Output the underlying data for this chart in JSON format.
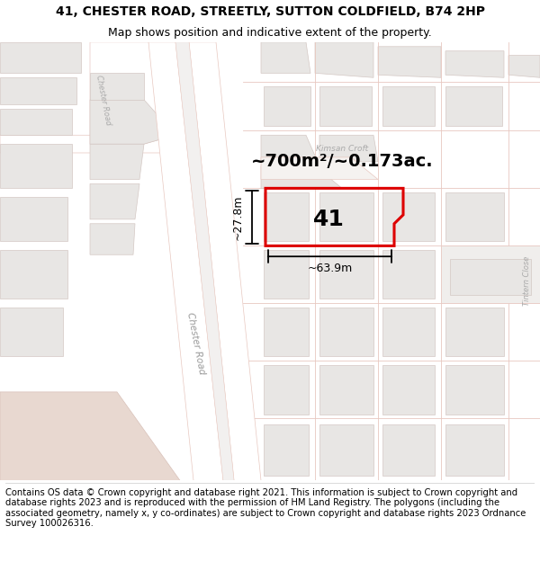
{
  "title_line1": "41, CHESTER ROAD, STREETLY, SUTTON COLDFIELD, B74 2HP",
  "title_line2": "Map shows position and indicative extent of the property.",
  "footer_text": "Contains OS data © Crown copyright and database right 2021. This information is subject to Crown copyright and database rights 2023 and is reproduced with the permission of HM Land Registry. The polygons (including the associated geometry, namely x, y co-ordinates) are subject to Crown copyright and database rights 2023 Ordnance Survey 100026316.",
  "area_label": "~700m²/~0.173ac.",
  "width_label": "~63.9m",
  "height_label": "~27.8m",
  "property_number": "41",
  "street_label_chester_main": "Chester Road",
  "street_label_chester_top": "Chester Road",
  "street_label_kimsan": "Kimsan Croft",
  "street_label_tintern": "Tintern Close",
  "bg_color": "#f2f0ef",
  "road_fill": "#ffffff",
  "road_edge": "#e8c8c0",
  "building_fill": "#e8e6e4",
  "building_edge": "#d4c8c4",
  "highlight_fill": "none",
  "highlight_edge": "#dd0000",
  "dim_color": "#000000",
  "street_color": "#b8a8a4",
  "title_fontsize": 10,
  "subtitle_fontsize": 9,
  "footer_fontsize": 7.2,
  "area_fontsize": 14,
  "dim_fontsize": 9,
  "prop_fontsize": 18
}
